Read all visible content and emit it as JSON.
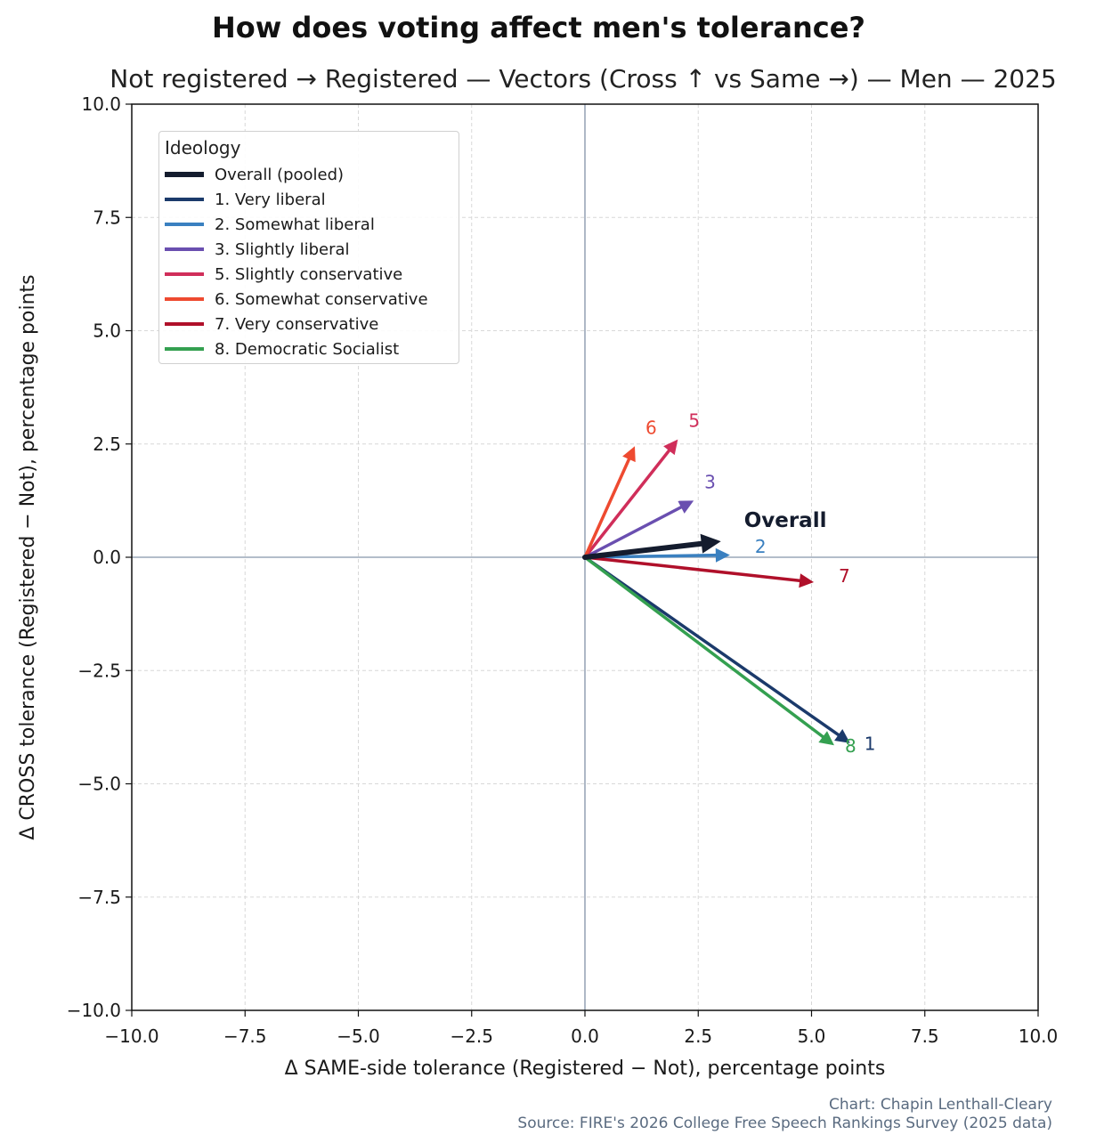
{
  "title": "How does voting affect men's tolerance?",
  "subtitle": "Not registered → Registered — Vectors (Cross ↑ vs Same →) — Men — 2025",
  "credit": {
    "line1": "Chart: Chapin Lenthall-Cleary",
    "line2": "Source: FIRE's 2026 College Free Speech Rankings Survey (2025 data)"
  },
  "chart_data": {
    "type": "vector",
    "xlabel": "Δ SAME-side tolerance (Registered − Not), percentage points",
    "ylabel": "Δ CROSS tolerance (Registered − Not), percentage points",
    "xlim": [
      -10,
      10
    ],
    "ylim": [
      -10,
      10
    ],
    "xticks": [
      -10,
      -7.5,
      -5,
      -2.5,
      0,
      2.5,
      5,
      7.5,
      10
    ],
    "yticks": [
      -10,
      -7.5,
      -5,
      -2.5,
      0,
      2.5,
      5,
      7.5,
      10
    ],
    "xtick_labels": [
      "−10.0",
      "−7.5",
      "−5.0",
      "−2.5",
      "0.0",
      "2.5",
      "5.0",
      "7.5",
      "10.0"
    ],
    "ytick_labels": [
      "−10.0",
      "−7.5",
      "−5.0",
      "−2.5",
      "0.0",
      "2.5",
      "5.0",
      "7.5",
      "10.0"
    ],
    "grid": true,
    "legend_title": "Ideology",
    "legend_position": "top-left",
    "series": [
      {
        "name": "Overall (pooled)",
        "label": "Overall",
        "color": "#141c2e",
        "dx": 3.0,
        "dy": 0.35,
        "bold": true
      },
      {
        "name": "1. Very liberal",
        "label": "1",
        "color": "#1b3a6b",
        "dx": 5.85,
        "dy": -4.1
      },
      {
        "name": "2. Somewhat liberal",
        "label": "2",
        "color": "#3a80c0",
        "dx": 3.2,
        "dy": 0.05
      },
      {
        "name": "3. Slightly liberal",
        "label": "3",
        "color": "#6a4fb0",
        "dx": 2.4,
        "dy": 1.25
      },
      {
        "name": "5. Slightly conservative",
        "label": "5",
        "color": "#d02e5a",
        "dx": 2.05,
        "dy": 2.6
      },
      {
        "name": "6. Somewhat conservative",
        "label": "6",
        "color": "#ee4a30",
        "dx": 1.1,
        "dy": 2.45
      },
      {
        "name": "7. Very conservative",
        "label": "7",
        "color": "#b0102a",
        "dx": 5.05,
        "dy": -0.55
      },
      {
        "name": "8. Democratic Socialist",
        "label": "8",
        "color": "#34a050",
        "dx": 5.5,
        "dy": -4.15
      }
    ]
  }
}
